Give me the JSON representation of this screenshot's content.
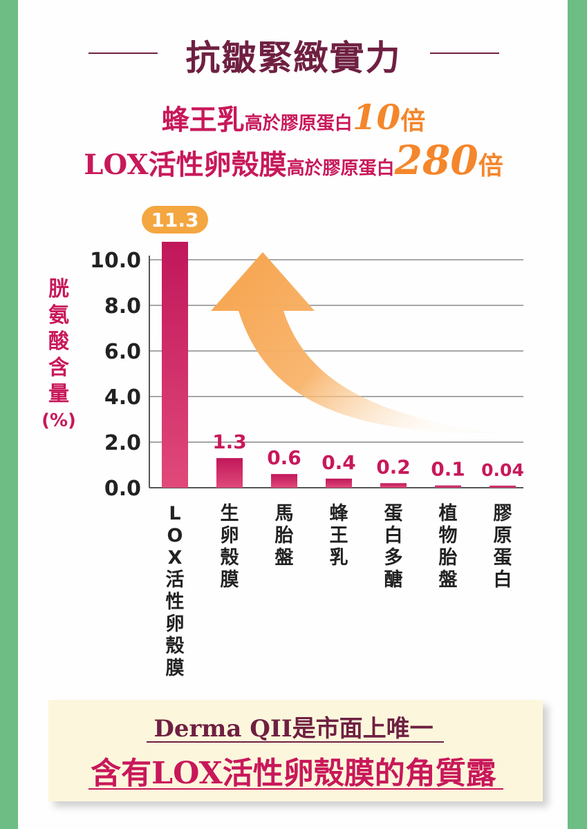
{
  "colors": {
    "green_border": "#6dbd84",
    "title": "#6f2042",
    "magenta": "#c8185a",
    "orange": "#f4862b",
    "footer_bg": "#fcf7dc"
  },
  "header": {
    "title": "抗皺緊緻實力",
    "line1": {
      "main": "蜂王乳",
      "mid": "高於膠原蛋白",
      "num": "10",
      "suffix": "倍"
    },
    "line2": {
      "main": "LOX活性卵殼膜",
      "mid": "高於膠原蛋白",
      "num": "280",
      "suffix": "倍"
    }
  },
  "chart_data": {
    "type": "bar",
    "ylabel": "胱氨酸含量(%)",
    "ylim": [
      0,
      10
    ],
    "yticks": [
      "0.0",
      "2.0",
      "4.0",
      "6.0",
      "8.0",
      "10.0"
    ],
    "grid": true,
    "categories": [
      "LOX活性卵殼膜",
      "生卵殼膜",
      "馬胎盤",
      "蜂王乳",
      "蛋白多醣",
      "植物胎盤",
      "膠原蛋白"
    ],
    "values": [
      11.3,
      1.3,
      0.6,
      0.4,
      0.2,
      0.1,
      0.04
    ],
    "value_labels": [
      "11.3",
      "1.3",
      "0.6",
      "0.4",
      "0.2",
      "0.1",
      "0.04"
    ],
    "highlight_label_bg": "#f4a640"
  },
  "footer": {
    "line1": "Derma QII是市面上唯一",
    "line2": "含有LOX活性卵殼膜的角質露"
  }
}
